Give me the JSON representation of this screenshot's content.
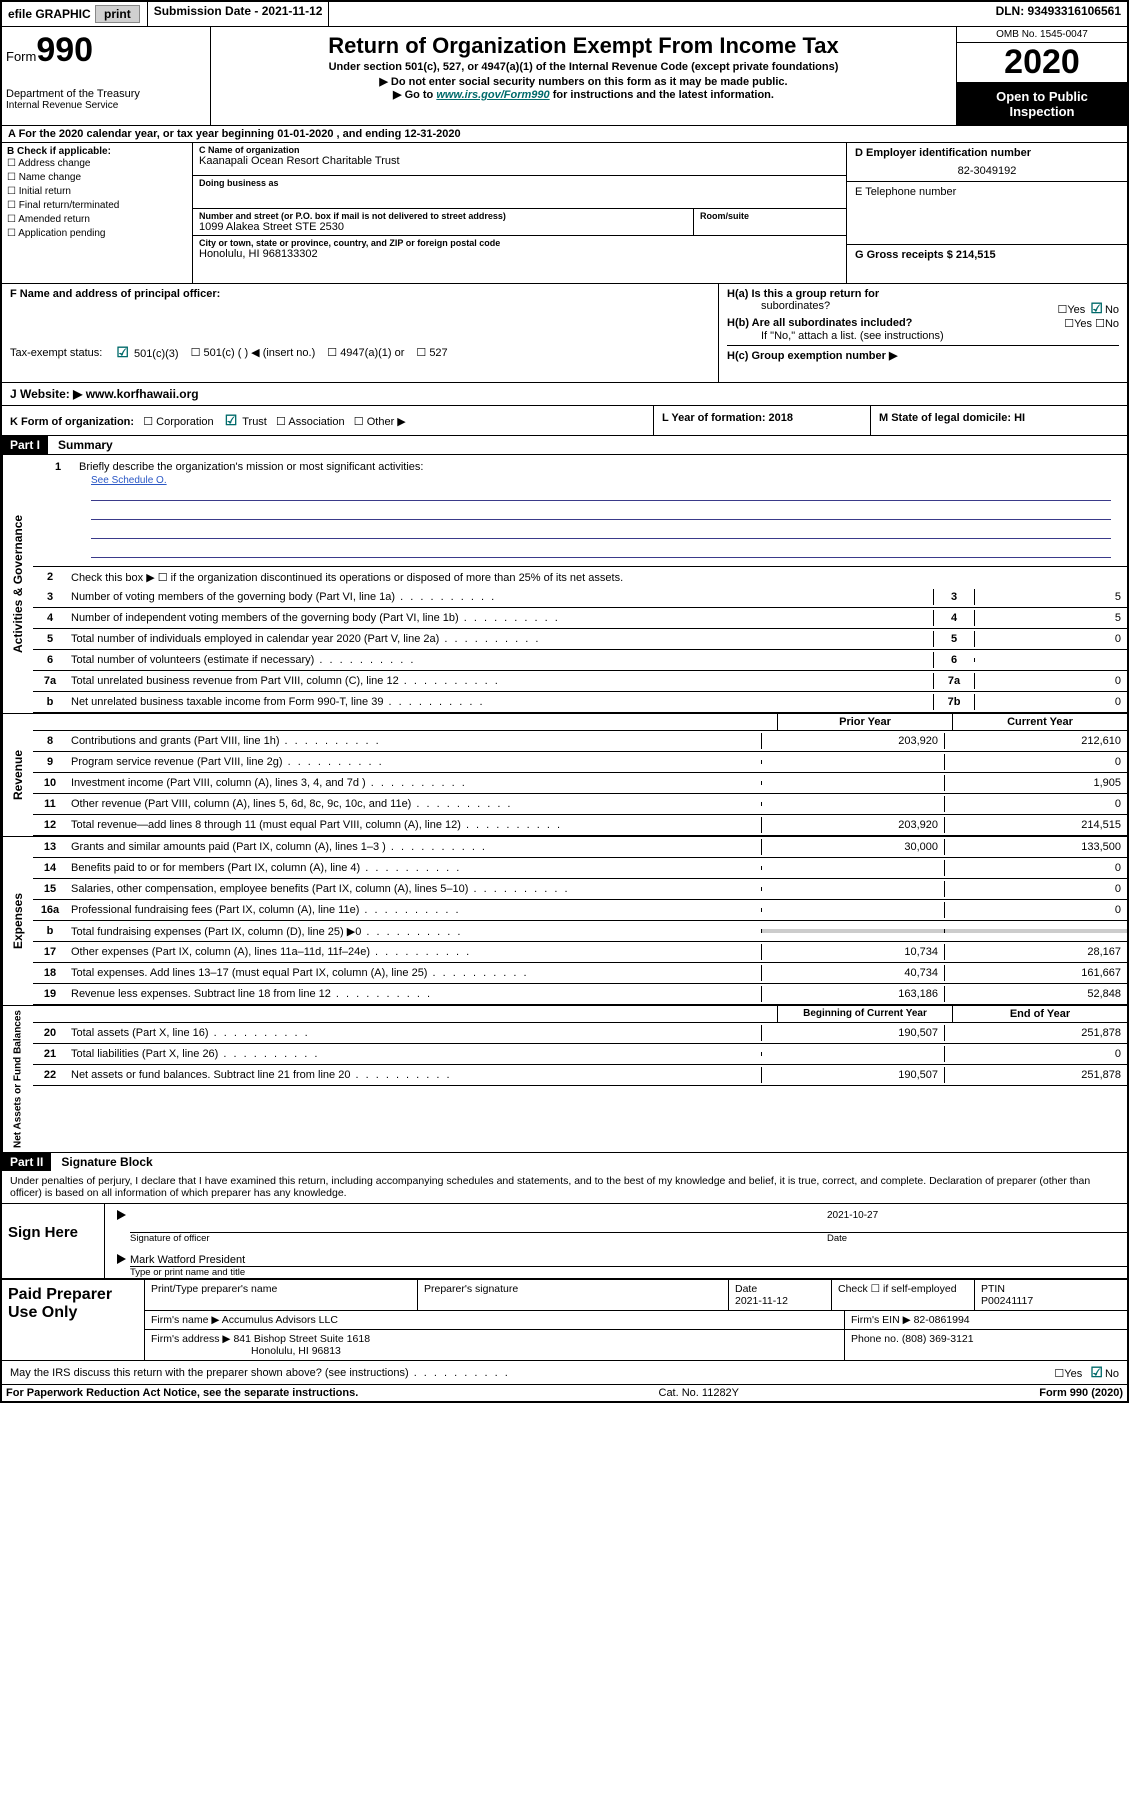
{
  "topbar": {
    "efile": "efile GRAPHIC",
    "print": "print",
    "submission": "Submission Date - 2021-11-12",
    "dln": "DLN: 93493316106561"
  },
  "header": {
    "form_label": "Form",
    "form_no": "990",
    "dept1": "Department of the Treasury",
    "dept2": "Internal Revenue Service",
    "title": "Return of Organization Exempt From Income Tax",
    "sub1": "Under section 501(c), 527, or 4947(a)(1) of the Internal Revenue Code (except private foundations)",
    "sub2": "▶ Do not enter social security numbers on this form as it may be made public.",
    "sub3a": "▶ Go to ",
    "sub3_link": "www.irs.gov/Form990",
    "sub3b": " for instructions and the latest information.",
    "omb": "OMB No. 1545-0047",
    "year": "2020",
    "open1": "Open to Public",
    "open2": "Inspection"
  },
  "row_a": "A For the 2020 calendar year, or tax year beginning 01-01-2020   , and ending 12-31-2020",
  "B": {
    "label": "B Check if applicable:",
    "addr": "Address change",
    "name": "Name change",
    "initial": "Initial return",
    "final": "Final return/terminated",
    "amended": "Amended return",
    "app": "Application pending"
  },
  "C": {
    "name_label": "C Name of organization",
    "name": "Kaanapali Ocean Resort Charitable Trust",
    "dba_label": "Doing business as",
    "street_label": "Number and street (or P.O. box if mail is not delivered to street address)",
    "street": "1099 Alakea Street STE 2530",
    "room_label": "Room/suite",
    "city_label": "City or town, state or province, country, and ZIP or foreign postal code",
    "city": "Honolulu, HI  968133302"
  },
  "D": {
    "ein_label": "D Employer identification number",
    "ein": "82-3049192",
    "phone_label": "E Telephone number",
    "gross_label": "G Gross receipts $ 214,515"
  },
  "F": {
    "label": "F  Name and address of principal officer:"
  },
  "H": {
    "a": "H(a)  Is this a group return for",
    "a2": "subordinates?",
    "b": "H(b)  Are all subordinates included?",
    "b2": "If \"No,\" attach a list. (see instructions)",
    "c": "H(c)  Group exemption number ▶",
    "yes": "Yes",
    "no": "No"
  },
  "I": {
    "label": "Tax-exempt status:",
    "o1": "501(c)(3)",
    "o2": "501(c) (   ) ◀ (insert no.)",
    "o3": "4947(a)(1) or",
    "o4": "527"
  },
  "J": {
    "label": "J   Website: ▶",
    "val": " www.korfhawaii.org"
  },
  "K": {
    "label": "K Form of organization:",
    "corp": "Corporation",
    "trust": "Trust",
    "assoc": "Association",
    "other": "Other ▶"
  },
  "L": {
    "label": "L Year of formation: 2018"
  },
  "M": {
    "label": "M State of legal domicile: HI"
  },
  "part1": {
    "header": "Part I",
    "title": "Summary",
    "side_ag": "Activities & Governance",
    "side_rev": "Revenue",
    "side_exp": "Expenses",
    "side_na": "Net Assets or Fund Balances",
    "q1": "Briefly describe the organization's mission or most significant activities:",
    "q1_link": "See Schedule O.",
    "q2": "Check this box ▶ ☐  if the organization discontinued its operations or disposed of more than 25% of its net assets.",
    "lines_single": [
      {
        "n": "3",
        "d": "Number of voting members of the governing body (Part VI, line 1a)",
        "b": "3",
        "v": "5"
      },
      {
        "n": "4",
        "d": "Number of independent voting members of the governing body (Part VI, line 1b)",
        "b": "4",
        "v": "5"
      },
      {
        "n": "5",
        "d": "Total number of individuals employed in calendar year 2020 (Part V, line 2a)",
        "b": "5",
        "v": "0"
      },
      {
        "n": "6",
        "d": "Total number of volunteers (estimate if necessary)",
        "b": "6",
        "v": ""
      },
      {
        "n": "7a",
        "d": "Total unrelated business revenue from Part VIII, column (C), line 12",
        "b": "7a",
        "v": "0"
      },
      {
        "n": "b",
        "d": "Net unrelated business taxable income from Form 990-T, line 39",
        "b": "7b",
        "v": "0"
      }
    ],
    "col_prior": "Prior Year",
    "col_current": "Current Year",
    "rev_lines": [
      {
        "n": "8",
        "d": "Contributions and grants (Part VIII, line 1h)",
        "p": "203,920",
        "c": "212,610"
      },
      {
        "n": "9",
        "d": "Program service revenue (Part VIII, line 2g)",
        "p": "",
        "c": "0"
      },
      {
        "n": "10",
        "d": "Investment income (Part VIII, column (A), lines 3, 4, and 7d )",
        "p": "",
        "c": "1,905"
      },
      {
        "n": "11",
        "d": "Other revenue (Part VIII, column (A), lines 5, 6d, 8c, 9c, 10c, and 11e)",
        "p": "",
        "c": "0"
      },
      {
        "n": "12",
        "d": "Total revenue—add lines 8 through 11 (must equal Part VIII, column (A), line 12)",
        "p": "203,920",
        "c": "214,515"
      }
    ],
    "exp_lines": [
      {
        "n": "13",
        "d": "Grants and similar amounts paid (Part IX, column (A), lines 1–3 )",
        "p": "30,000",
        "c": "133,500"
      },
      {
        "n": "14",
        "d": "Benefits paid to or for members (Part IX, column (A), line 4)",
        "p": "",
        "c": "0"
      },
      {
        "n": "15",
        "d": "Salaries, other compensation, employee benefits (Part IX, column (A), lines 5–10)",
        "p": "",
        "c": "0"
      },
      {
        "n": "16a",
        "d": "Professional fundraising fees (Part IX, column (A), line 11e)",
        "p": "",
        "c": "0"
      },
      {
        "n": "b",
        "d": "Total fundraising expenses (Part IX, column (D), line 25) ▶0",
        "p": "GREY",
        "c": "GREY"
      },
      {
        "n": "17",
        "d": "Other expenses (Part IX, column (A), lines 11a–11d, 11f–24e)",
        "p": "10,734",
        "c": "28,167"
      },
      {
        "n": "18",
        "d": "Total expenses. Add lines 13–17 (must equal Part IX, column (A), line 25)",
        "p": "40,734",
        "c": "161,667"
      },
      {
        "n": "19",
        "d": "Revenue less expenses. Subtract line 18 from line 12",
        "p": "163,186",
        "c": "52,848"
      }
    ],
    "col_begin": "Beginning of Current Year",
    "col_end": "End of Year",
    "na_lines": [
      {
        "n": "20",
        "d": "Total assets (Part X, line 16)",
        "p": "190,507",
        "c": "251,878"
      },
      {
        "n": "21",
        "d": "Total liabilities (Part X, line 26)",
        "p": "",
        "c": "0"
      },
      {
        "n": "22",
        "d": "Net assets or fund balances. Subtract line 21 from line 20",
        "p": "190,507",
        "c": "251,878"
      }
    ]
  },
  "part2": {
    "header": "Part II",
    "title": "Signature Block",
    "perjury": "Under penalties of perjury, I declare that I have examined this return, including accompanying schedules and statements, and to the best of my knowledge and belief, it is true, correct, and complete. Declaration of preparer (other than officer) is based on all information of which preparer has any knowledge.",
    "sign_here": "Sign Here",
    "sig_of_officer": "Signature of officer",
    "sig_date": "2021-10-27",
    "date_label": "Date",
    "officer_name": "Mark Watford President",
    "type_label": "Type or print name and title",
    "paid": "Paid Preparer Use Only",
    "pp_name_label": "Print/Type preparer's name",
    "pp_sig_label": "Preparer's signature",
    "pp_date_label": "Date",
    "pp_date": "2021-11-12",
    "pp_check": "Check ☐ if self-employed",
    "ptin_label": "PTIN",
    "ptin": "P00241117",
    "firm_name_label": "Firm's name    ▶",
    "firm_name": "Accumulus Advisors LLC",
    "firm_ein_label": "Firm's EIN ▶",
    "firm_ein": "82-0861994",
    "firm_addr_label": "Firm's address ▶",
    "firm_addr1": "841 Bishop Street Suite 1618",
    "firm_addr2": "Honolulu, HI  96813",
    "firm_phone_label": "Phone no.",
    "firm_phone": "(808) 369-3121",
    "may_irs": "May the IRS discuss this return with the preparer shown above? (see instructions)"
  },
  "footer": {
    "left": "For Paperwork Reduction Act Notice, see the separate instructions.",
    "mid": "Cat. No. 11282Y",
    "right": "Form 990 (2020)"
  }
}
